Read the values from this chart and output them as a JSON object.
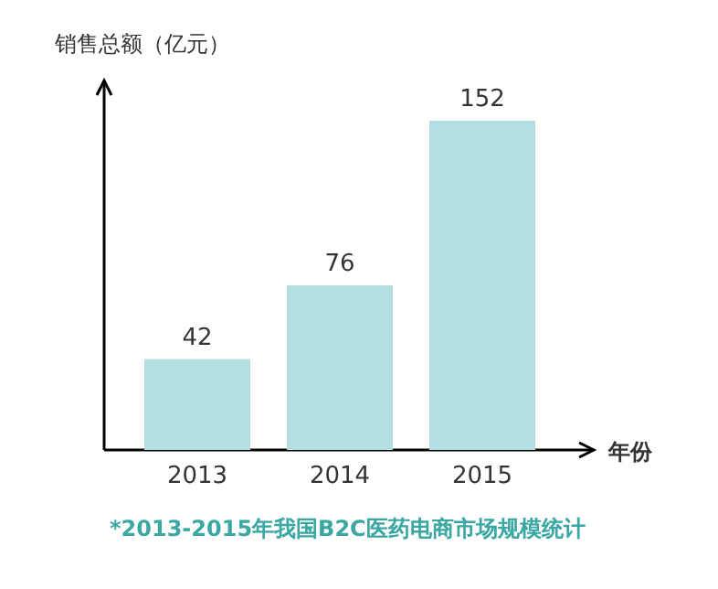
{
  "chart_data": {
    "type": "bar",
    "categories": [
      "2013",
      "2014",
      "2015"
    ],
    "values": [
      42,
      76,
      152
    ],
    "color": "#b3dfe1",
    "data_labels": true,
    "ylabel": "销售总额（亿元）",
    "xlabel": "年份",
    "title": "*2013-2015年我国B2C医药电商市场规模统计"
  }
}
